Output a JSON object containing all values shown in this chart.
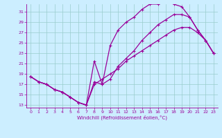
{
  "xlabel": "Windchill (Refroidissement éolien,°C)",
  "bg_color": "#cceeff",
  "line_color": "#990099",
  "grid_color": "#99cccc",
  "xlim": [
    -0.5,
    23.5
  ],
  "ylim": [
    12.5,
    32.5
  ],
  "xticks": [
    0,
    1,
    2,
    3,
    4,
    5,
    6,
    7,
    8,
    9,
    10,
    11,
    12,
    13,
    14,
    15,
    16,
    17,
    18,
    19,
    20,
    21,
    22,
    23
  ],
  "yticks": [
    13,
    15,
    17,
    19,
    21,
    23,
    25,
    27,
    29,
    31
  ],
  "curve1_x": [
    0,
    1,
    2,
    3,
    4,
    5,
    6,
    7,
    8,
    9,
    10,
    11,
    12,
    13,
    14,
    15,
    16,
    17,
    18,
    19,
    20,
    21,
    22,
    23
  ],
  "curve1_y": [
    18.5,
    17.5,
    17.0,
    16.0,
    15.5,
    14.5,
    13.5,
    13.0,
    21.5,
    17.0,
    24.5,
    27.5,
    29.0,
    30.0,
    31.5,
    32.5,
    32.5,
    33.0,
    32.5,
    32.0,
    30.0,
    27.5,
    25.5,
    23.0
  ],
  "curve2_x": [
    0,
    1,
    2,
    3,
    4,
    5,
    6,
    7,
    8,
    9,
    10,
    11,
    12,
    13,
    14,
    15,
    16,
    17,
    18,
    19,
    20,
    21,
    22,
    23
  ],
  "curve2_y": [
    18.5,
    17.5,
    17.0,
    16.0,
    15.5,
    14.5,
    13.5,
    13.0,
    17.5,
    17.0,
    18.0,
    20.5,
    22.0,
    23.5,
    25.5,
    27.0,
    28.5,
    29.5,
    30.5,
    30.5,
    30.0,
    27.5,
    25.5,
    23.0
  ],
  "curve3_x": [
    0,
    1,
    2,
    3,
    4,
    5,
    6,
    7,
    8,
    9,
    10,
    11,
    12,
    13,
    14,
    15,
    16,
    17,
    18,
    19,
    20,
    21,
    22,
    23
  ],
  "curve3_y": [
    18.5,
    17.5,
    17.0,
    16.0,
    15.5,
    14.5,
    13.5,
    13.0,
    17.0,
    18.0,
    19.0,
    20.0,
    21.5,
    22.5,
    23.5,
    24.5,
    25.5,
    26.5,
    27.5,
    28.0,
    28.0,
    27.0,
    25.5,
    23.0
  ]
}
